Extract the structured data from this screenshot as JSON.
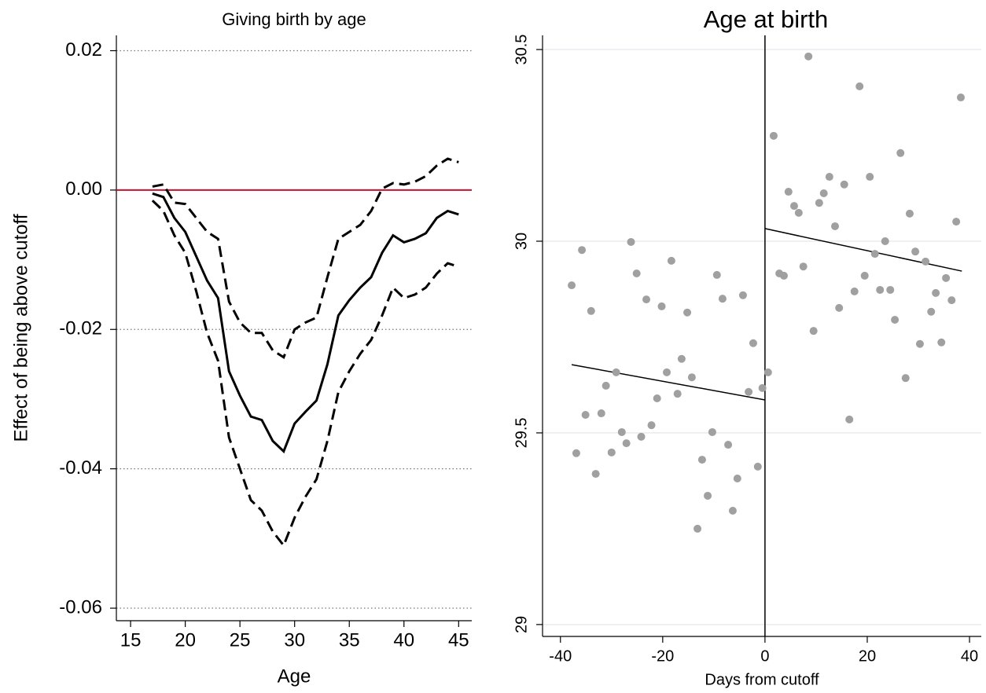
{
  "chart_data": [
    {
      "type": "line",
      "title": "Giving birth by age",
      "x_label": "Age",
      "y_label": "Effect of being above cutoff",
      "x": [
        17,
        18,
        19,
        20,
        21,
        22,
        23,
        24,
        25,
        26,
        27,
        28,
        29,
        30,
        31,
        32,
        33,
        34,
        35,
        36,
        37,
        38,
        39,
        40,
        41,
        42,
        43,
        44,
        45
      ],
      "series": [
        {
          "color": "#000000",
          "dashed": false,
          "values": [
            -0.0005,
            -0.001,
            -0.004,
            -0.006,
            -0.0095,
            -0.013,
            -0.0155,
            -0.026,
            -0.0295,
            -0.0325,
            -0.033,
            -0.036,
            -0.0375,
            -0.0335,
            -0.0318,
            -0.0302,
            -0.025,
            -0.018,
            -0.0158,
            -0.014,
            -0.0125,
            -0.009,
            -0.0065,
            -0.0075,
            -0.007,
            -0.0062,
            -0.004,
            -0.003,
            -0.0035
          ]
        },
        {
          "color": "#000000",
          "dashed": true,
          "values": [
            0.0005,
            0.0008,
            -0.0018,
            -0.002,
            -0.004,
            -0.006,
            -0.007,
            -0.016,
            -0.019,
            -0.0205,
            -0.0205,
            -0.023,
            -0.024,
            -0.02,
            -0.019,
            -0.0183,
            -0.0125,
            -0.007,
            -0.006,
            -0.005,
            -0.003,
            0.0002,
            0.001,
            0.0008,
            0.0012,
            0.002,
            0.0035,
            0.0045,
            0.004
          ]
        },
        {
          "color": "#000000",
          "dashed": true,
          "values": [
            -0.0015,
            -0.003,
            -0.0065,
            -0.009,
            -0.0145,
            -0.0205,
            -0.0245,
            -0.0355,
            -0.04,
            -0.0445,
            -0.046,
            -0.049,
            -0.051,
            -0.047,
            -0.044,
            -0.0415,
            -0.036,
            -0.029,
            -0.026,
            -0.0235,
            -0.0215,
            -0.018,
            -0.014,
            -0.0155,
            -0.015,
            -0.014,
            -0.012,
            -0.0105,
            -0.011
          ]
        }
      ],
      "yline": 0,
      "yline_color": "#c8102e",
      "xlim": [
        13.7,
        46.2
      ],
      "xticks": [
        15,
        20,
        25,
        30,
        35,
        40,
        45
      ],
      "ylim": [
        -0.0618,
        0.0222
      ],
      "yticks": [
        0.02,
        {
          "value": 0,
          "label": "0.00"
        },
        -0.02,
        -0.04,
        -0.06
      ],
      "grid": "dotted"
    },
    {
      "type": "scatter",
      "title": "Age at birth",
      "x_label": "Days from cutoff",
      "color": "#a0a0a0",
      "x": [
        -37.8,
        -36.9,
        -35.8,
        -35.1,
        -34,
        -33.1,
        -32,
        -31.1,
        -30,
        -29.1,
        -28,
        -27.1,
        -26.2,
        -25.1,
        -24.2,
        -23.2,
        -22.2,
        -21.1,
        -20.2,
        -19.2,
        -18.3,
        -17.1,
        -16.3,
        -15.2,
        -14.3,
        -13.2,
        -12.3,
        -11.2,
        -10.3,
        -9.4,
        -8.3,
        -7.2,
        -6.3,
        -5.4,
        -4.3,
        -3.2,
        -2.3,
        -1.4,
        -0.5,
        0.6,
        1.7,
        2.8,
        3.7,
        4.6,
        5.7,
        6.6,
        7.5,
        8.5,
        9.5,
        10.6,
        11.5,
        12.6,
        13.7,
        14.5,
        15.5,
        16.5,
        17.5,
        18.5,
        19.5,
        20.5,
        21.5,
        22.5,
        23.5,
        24.5,
        25.4,
        26.5,
        27.5,
        28.3,
        29.4,
        30.3,
        31.4,
        32.5,
        33.4,
        34.5,
        35.4,
        36.5,
        37.4,
        38.3
      ],
      "values": [
        29.885,
        29.447,
        29.977,
        29.547,
        29.818,
        29.393,
        29.551,
        29.623,
        29.449,
        29.658,
        29.502,
        29.473,
        29.998,
        29.916,
        29.49,
        29.848,
        29.52,
        29.59,
        29.83,
        29.658,
        29.949,
        29.602,
        29.693,
        29.814,
        29.645,
        29.25,
        29.43,
        29.336,
        29.502,
        29.912,
        29.85,
        29.469,
        29.297,
        29.381,
        29.859,
        29.607,
        29.734,
        29.412,
        29.617,
        29.658,
        30.275,
        29.916,
        29.91,
        30.129,
        30.092,
        30.074,
        29.934,
        30.482,
        29.766,
        30.1,
        30.125,
        30.168,
        30.039,
        29.826,
        30.148,
        29.535,
        29.869,
        30.404,
        29.91,
        30.168,
        29.967,
        29.873,
        30.0,
        29.873,
        29.795,
        30.23,
        29.643,
        30.072,
        29.973,
        29.732,
        29.947,
        29.816,
        29.865,
        29.736,
        29.904,
        29.846,
        30.051,
        30.375
      ],
      "fit_lines": [
        {
          "color": "#000000",
          "x": [
            -37.8,
            0
          ],
          "values": [
            29.678,
            29.586
          ]
        },
        {
          "color": "#000000",
          "x": [
            0,
            38.5
          ],
          "values": [
            30.033,
            29.922
          ]
        }
      ],
      "xline": 0,
      "xlim": [
        -43.5,
        42.3
      ],
      "xticks": [
        -40,
        -20,
        0,
        20,
        40
      ],
      "ylim": [
        28.969,
        30.537
      ],
      "yticks": [
        29,
        29.5,
        30,
        30.5
      ],
      "grid": "solid"
    }
  ]
}
